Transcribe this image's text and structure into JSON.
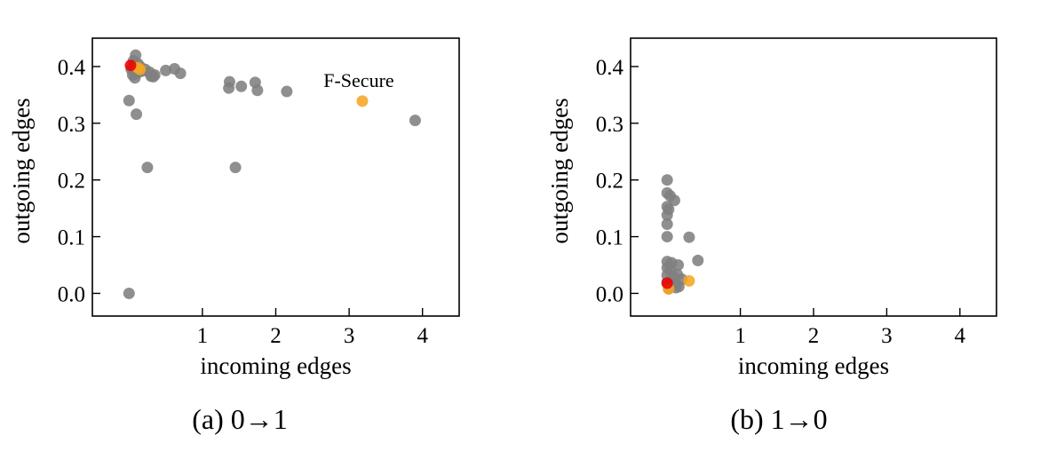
{
  "chart_data": [
    {
      "type": "scatter",
      "caption": "(a)  0→1",
      "xlabel": "incoming edges",
      "ylabel": "outgoing edges",
      "xlim": [
        -0.5,
        4.5
      ],
      "ylim": [
        -0.04,
        0.45
      ],
      "xticks": [
        1,
        2,
        3,
        4
      ],
      "xtick_labels": [
        "1",
        "2",
        "3",
        "4"
      ],
      "yticks": [
        0.0,
        0.1,
        0.2,
        0.3,
        0.4
      ],
      "ytick_labels": [
        "0.0",
        "0.1",
        "0.2",
        "0.3",
        "0.4"
      ],
      "grid": false,
      "annotations": [
        {
          "text": "F-Secure",
          "x": 3.18,
          "y": 0.339
        }
      ],
      "series": [
        {
          "color": "#808080",
          "points": [
            [
              0.0,
              0.0
            ],
            [
              0.0,
              0.34
            ],
            [
              0.1,
              0.316
            ],
            [
              0.25,
              0.222
            ],
            [
              1.45,
              0.222
            ],
            [
              0.03,
              0.395
            ],
            [
              0.06,
              0.41
            ],
            [
              0.09,
              0.42
            ],
            [
              0.12,
              0.405
            ],
            [
              0.05,
              0.385
            ],
            [
              0.1,
              0.388
            ],
            [
              0.13,
              0.39
            ],
            [
              0.15,
              0.4
            ],
            [
              0.08,
              0.38
            ],
            [
              0.18,
              0.392
            ],
            [
              0.22,
              0.395
            ],
            [
              0.28,
              0.39
            ],
            [
              0.3,
              0.383
            ],
            [
              0.35,
              0.385
            ],
            [
              0.33,
              0.382
            ],
            [
              0.5,
              0.393
            ],
            [
              0.62,
              0.396
            ],
            [
              0.7,
              0.388
            ],
            [
              1.37,
              0.373
            ],
            [
              1.36,
              0.362
            ],
            [
              1.53,
              0.365
            ],
            [
              1.72,
              0.372
            ],
            [
              1.75,
              0.358
            ],
            [
              2.15,
              0.356
            ],
            [
              3.9,
              0.305
            ]
          ]
        },
        {
          "color": "#f5a623",
          "points": [
            [
              0.12,
              0.398
            ],
            [
              0.15,
              0.395
            ],
            [
              3.18,
              0.339
            ]
          ]
        },
        {
          "color": "#ee0000",
          "points": [
            [
              0.02,
              0.402
            ]
          ]
        }
      ]
    },
    {
      "type": "scatter",
      "caption": "(b)  1→0",
      "xlabel": "incoming edges",
      "ylabel": "outgoing edges",
      "xlim": [
        -0.5,
        4.5
      ],
      "ylim": [
        -0.04,
        0.45
      ],
      "xticks": [
        1,
        2,
        3,
        4
      ],
      "xtick_labels": [
        "1",
        "2",
        "3",
        "4"
      ],
      "yticks": [
        0.0,
        0.1,
        0.2,
        0.3,
        0.4
      ],
      "ytick_labels": [
        "0.0",
        "0.1",
        "0.2",
        "0.3",
        "0.4"
      ],
      "grid": false,
      "annotations": [],
      "series": [
        {
          "color": "#808080",
          "points": [
            [
              0.0,
              0.2
            ],
            [
              0.0,
              0.177
            ],
            [
              0.04,
              0.172
            ],
            [
              0.1,
              0.164
            ],
            [
              0.0,
              0.153
            ],
            [
              0.02,
              0.148
            ],
            [
              0.0,
              0.138
            ],
            [
              0.0,
              0.122
            ],
            [
              0.0,
              0.1
            ],
            [
              0.3,
              0.099
            ],
            [
              0.42,
              0.058
            ],
            [
              0.0,
              0.056
            ],
            [
              0.06,
              0.054
            ],
            [
              0.15,
              0.05
            ],
            [
              0.0,
              0.045
            ],
            [
              0.04,
              0.04
            ],
            [
              0.0,
              0.032
            ],
            [
              0.08,
              0.03
            ],
            [
              0.14,
              0.033
            ],
            [
              0.2,
              0.025
            ],
            [
              0.0,
              0.02
            ],
            [
              0.1,
              0.018
            ],
            [
              0.16,
              0.012
            ],
            [
              0.02,
              0.008
            ],
            [
              0.12,
              0.01
            ],
            [
              0.05,
              0.015
            ]
          ]
        },
        {
          "color": "#f5a623",
          "points": [
            [
              0.3,
              0.022
            ],
            [
              0.02,
              0.008
            ]
          ]
        },
        {
          "color": "#ee0000",
          "points": [
            [
              0.0,
              0.018
            ]
          ]
        }
      ]
    }
  ]
}
